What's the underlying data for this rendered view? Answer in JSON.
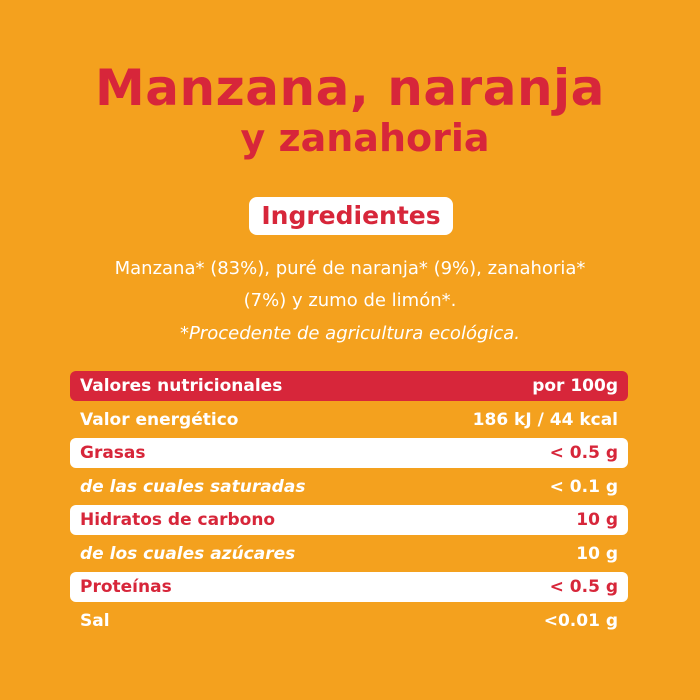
{
  "product": {
    "title_line1": "Manzana, naranja",
    "title_line2": "y zanahoria"
  },
  "ingredients": {
    "heading": "Ingredientes",
    "text_line1": "Manzana* (83%), puré de naranja* (9%), zanahoria*",
    "text_line2": "(7%) y zumo de limón*.",
    "note": "*Procedente de agricultura ecológica."
  },
  "nutrition": {
    "header": {
      "label": "Valores nutricionales",
      "value": "por 100g"
    },
    "rows": [
      {
        "label": "Valor energético",
        "value": "186 kJ / 44 kcal",
        "style": "plain"
      },
      {
        "label": "Grasas",
        "value": "< 0.5 g",
        "style": "white"
      },
      {
        "label": "de las cuales saturadas",
        "value": "< 0.1 g",
        "style": "italic"
      },
      {
        "label": "Hidratos de carbono",
        "value": "10 g",
        "style": "white"
      },
      {
        "label": "de los cuales azúcares",
        "value": "10 g",
        "style": "italic"
      },
      {
        "label": "Proteínas",
        "value": "< 0.5 g",
        "style": "white"
      },
      {
        "label": "Sal",
        "value": "<0.01 g",
        "style": "plain"
      }
    ]
  },
  "colors": {
    "background": "#F4A11E",
    "accent_red": "#D7263A",
    "white": "#FFFFFF"
  }
}
